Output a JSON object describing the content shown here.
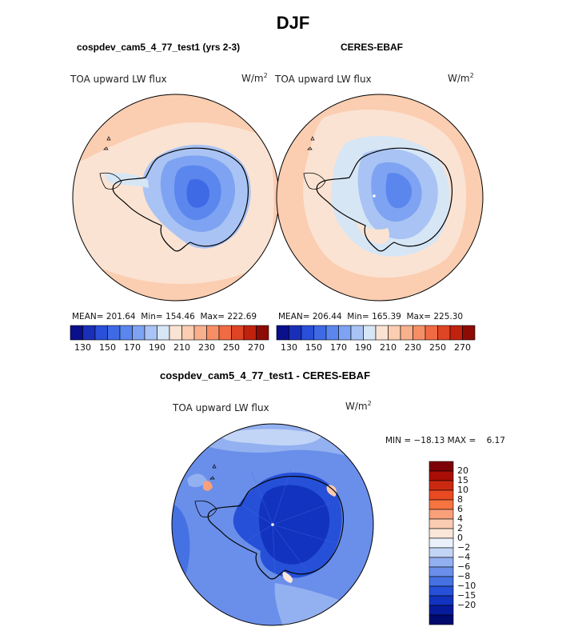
{
  "title": "DJF",
  "panel_left": {
    "title": "cospdev_cam5_4_77_test1 (yrs 2-3)",
    "variable": "TOA upward LW flux",
    "units": "W/m",
    "units_sup": "2",
    "mean": "MEAN= 201.64",
    "min": "Min= 154.46",
    "max": "Max= 222.69"
  },
  "panel_right": {
    "title": "CERES-EBAF",
    "variable": "TOA upward LW flux",
    "units": "W/m",
    "units_sup": "2",
    "mean": "MEAN= 206.44",
    "min": "Min= 165.39",
    "max": "Max= 225.30"
  },
  "panel_diff": {
    "title": "cospdev_cam5_4_77_test1 - CERES-EBAF",
    "variable": "TOA upward LW flux",
    "units": "W/m",
    "units_sup": "2",
    "minmax": "MIN = −18.13 MAX =    6.17"
  },
  "colorbar_abs": {
    "colors": [
      "#0a0f8c",
      "#1a2fb8",
      "#2a4fd8",
      "#3f6ae6",
      "#5a86ee",
      "#7ea3f2",
      "#a9c3f4",
      "#d6e6f5",
      "#fbe3d3",
      "#fbcdb1",
      "#f9b08c",
      "#f68f66",
      "#f06b43",
      "#df4424",
      "#c0220e",
      "#8e0a05"
    ],
    "labels": [
      "130",
      "150",
      "170",
      "190",
      "210",
      "230",
      "250",
      "270"
    ]
  },
  "colorbar_diff": {
    "colors": [
      "#7e0205",
      "#a80e06",
      "#cc2a10",
      "#e94a22",
      "#f6743f",
      "#f9a07a",
      "#fbcbb2",
      "#fbe6da",
      "#eaf1fb",
      "#c3d5f6",
      "#93b0f0",
      "#6a8fea",
      "#4671e3",
      "#2650d7",
      "#1233bf",
      "#061b9c",
      "#010a6e"
    ],
    "labels": [
      "20",
      "15",
      "10",
      "8",
      "6",
      "4",
      "2",
      "0",
      "−2",
      "−4",
      "−6",
      "−8",
      "−10",
      "−15",
      "−20"
    ]
  }
}
